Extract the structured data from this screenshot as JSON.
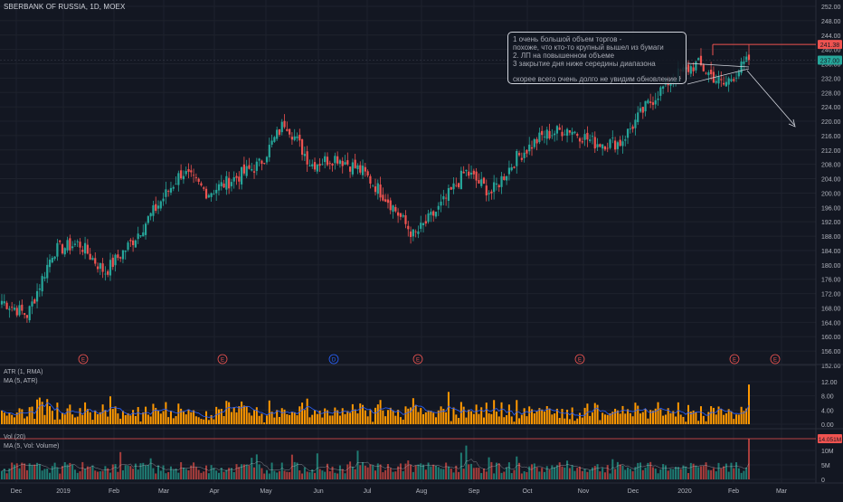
{
  "header": {
    "symbol_line": "SBERBANK OF RUSSIA, 1D, MOEX"
  },
  "price_axis": {
    "ticks": [
      "252.00",
      "248.00",
      "244.00",
      "240.00",
      "236.00",
      "232.00",
      "228.00",
      "224.00",
      "220.00",
      "216.00",
      "212.00",
      "208.00",
      "204.00",
      "200.00",
      "196.00",
      "192.00",
      "188.00",
      "184.00",
      "180.00",
      "176.00",
      "172.00",
      "168.00",
      "164.00",
      "160.00",
      "156.00",
      "152.00"
    ],
    "range": [
      152,
      253
    ],
    "badge_high": "241.38",
    "badge_last": "237.00"
  },
  "atr_panel": {
    "label_atr": "ATR (1, RMA)",
    "label_ma": "MA (5, ATR)",
    "ticks": [
      "12.00",
      "8.00",
      "4.00",
      "0.00"
    ],
    "range": [
      0,
      14
    ]
  },
  "vol_panel": {
    "label_vol": "Vol (20)",
    "label_ma": "MA (5, Vol: Volume)",
    "ticks": [
      "10M",
      "5M",
      "0"
    ],
    "badge": "14.051M",
    "range": [
      0,
      15
    ]
  },
  "time_axis": {
    "labels": [
      "Dec",
      "2019",
      "Feb",
      "Mar",
      "Apr",
      "May",
      "Jun",
      "Jul",
      "Aug",
      "Sep",
      "Oct",
      "Nov",
      "Dec",
      "2020",
      "Feb",
      "Mar"
    ]
  },
  "events": {
    "markers": [
      "E",
      "E",
      "D",
      "E",
      "E",
      "E",
      "E"
    ]
  },
  "note": {
    "line1": "1 очень большой объем торгов -",
    "line2": "похоже, что кто-то крупный вышел из бумаги",
    "line3": "2. ЛП на повышенном объеме",
    "line4": "3 закрытие дня ниже середины диапазона",
    "line5": "скорее всего очень долго не увидим обновление Hi"
  },
  "colors": {
    "bg": "#131722",
    "up": "#26a69a",
    "down": "#ef5350",
    "grid": "#1e222d",
    "text": "#b2b5be",
    "atr_up": "#ff9800",
    "atr_ma": "#2962ff",
    "hline": "#ef5350",
    "last": "#26a69a"
  },
  "chart_data": {
    "type": "candlestick",
    "title": "SBERBANK OF RUSSIA, 1D, MOEX",
    "close_anchors": [
      [
        "Dec",
        170
      ],
      [
        "2019",
        166
      ],
      [
        "Feb",
        184
      ],
      [
        "Feb2",
        186
      ],
      [
        "Mar",
        178
      ],
      [
        "Mar2",
        186
      ],
      [
        "Apr",
        196
      ],
      [
        "Apr2",
        206
      ],
      [
        "May",
        200
      ],
      [
        "May2",
        204
      ],
      [
        "Jun",
        208
      ],
      [
        "Jun2",
        220
      ],
      [
        "Jun3",
        208
      ],
      [
        "Jul",
        210
      ],
      [
        "Jul2",
        206
      ],
      [
        "Aug",
        198
      ],
      [
        "Aug2",
        188
      ],
      [
        "Aug3",
        196
      ],
      [
        "Sep",
        206
      ],
      [
        "Sep2",
        200
      ],
      [
        "Oct",
        210
      ],
      [
        "Oct2",
        216
      ],
      [
        "Nov",
        218
      ],
      [
        "Nov2",
        214
      ],
      [
        "Dec",
        214
      ],
      [
        "Dec2",
        224
      ],
      [
        "2020",
        232
      ],
      [
        "2020b",
        236
      ],
      [
        "Feb",
        230
      ],
      [
        "Feb2",
        237
      ]
    ],
    "high_max": 241.38,
    "last_close": 237.0,
    "annotation_arrow": "down",
    "volume_last_M": 14.051,
    "atr_last": 11.2
  }
}
